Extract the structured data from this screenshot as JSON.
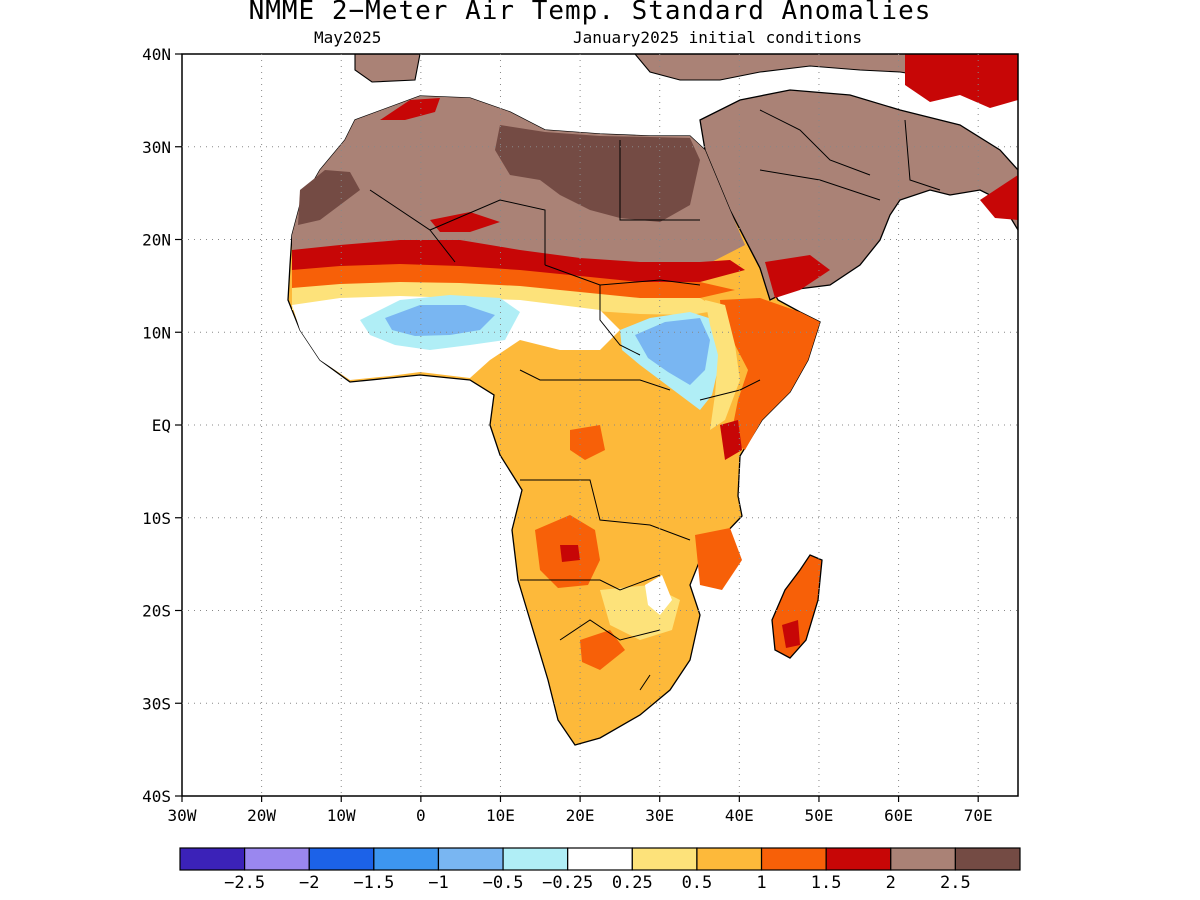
{
  "title": "NMME 2−Meter Air Temp. Standard Anomalies",
  "valid_month": "May2025",
  "init_conditions": "January2025 initial conditions",
  "lat_labels": [
    "40N",
    "30N",
    "20N",
    "10N",
    "EQ",
    "10S",
    "20S",
    "30S",
    "40S"
  ],
  "lon_labels": [
    "30W",
    "20W",
    "10W",
    "0",
    "10E",
    "20E",
    "30E",
    "40E",
    "50E",
    "60E",
    "70E"
  ],
  "legend": {
    "colors": [
      "#3b22b8",
      "#9a87ef",
      "#1c62e8",
      "#3d96f0",
      "#79b6f2",
      "#b0eef6",
      "#ffffff",
      "#fde27a",
      "#fdb93a",
      "#f76008",
      "#c70606",
      "#aa8276",
      "#744b44"
    ],
    "labels": [
      "−2.5",
      "−2",
      "−1.5",
      "−1",
      "−0.5",
      "−0.25",
      "0.25",
      "0.5",
      "1",
      "1.5",
      "2",
      "2.5"
    ]
  }
}
